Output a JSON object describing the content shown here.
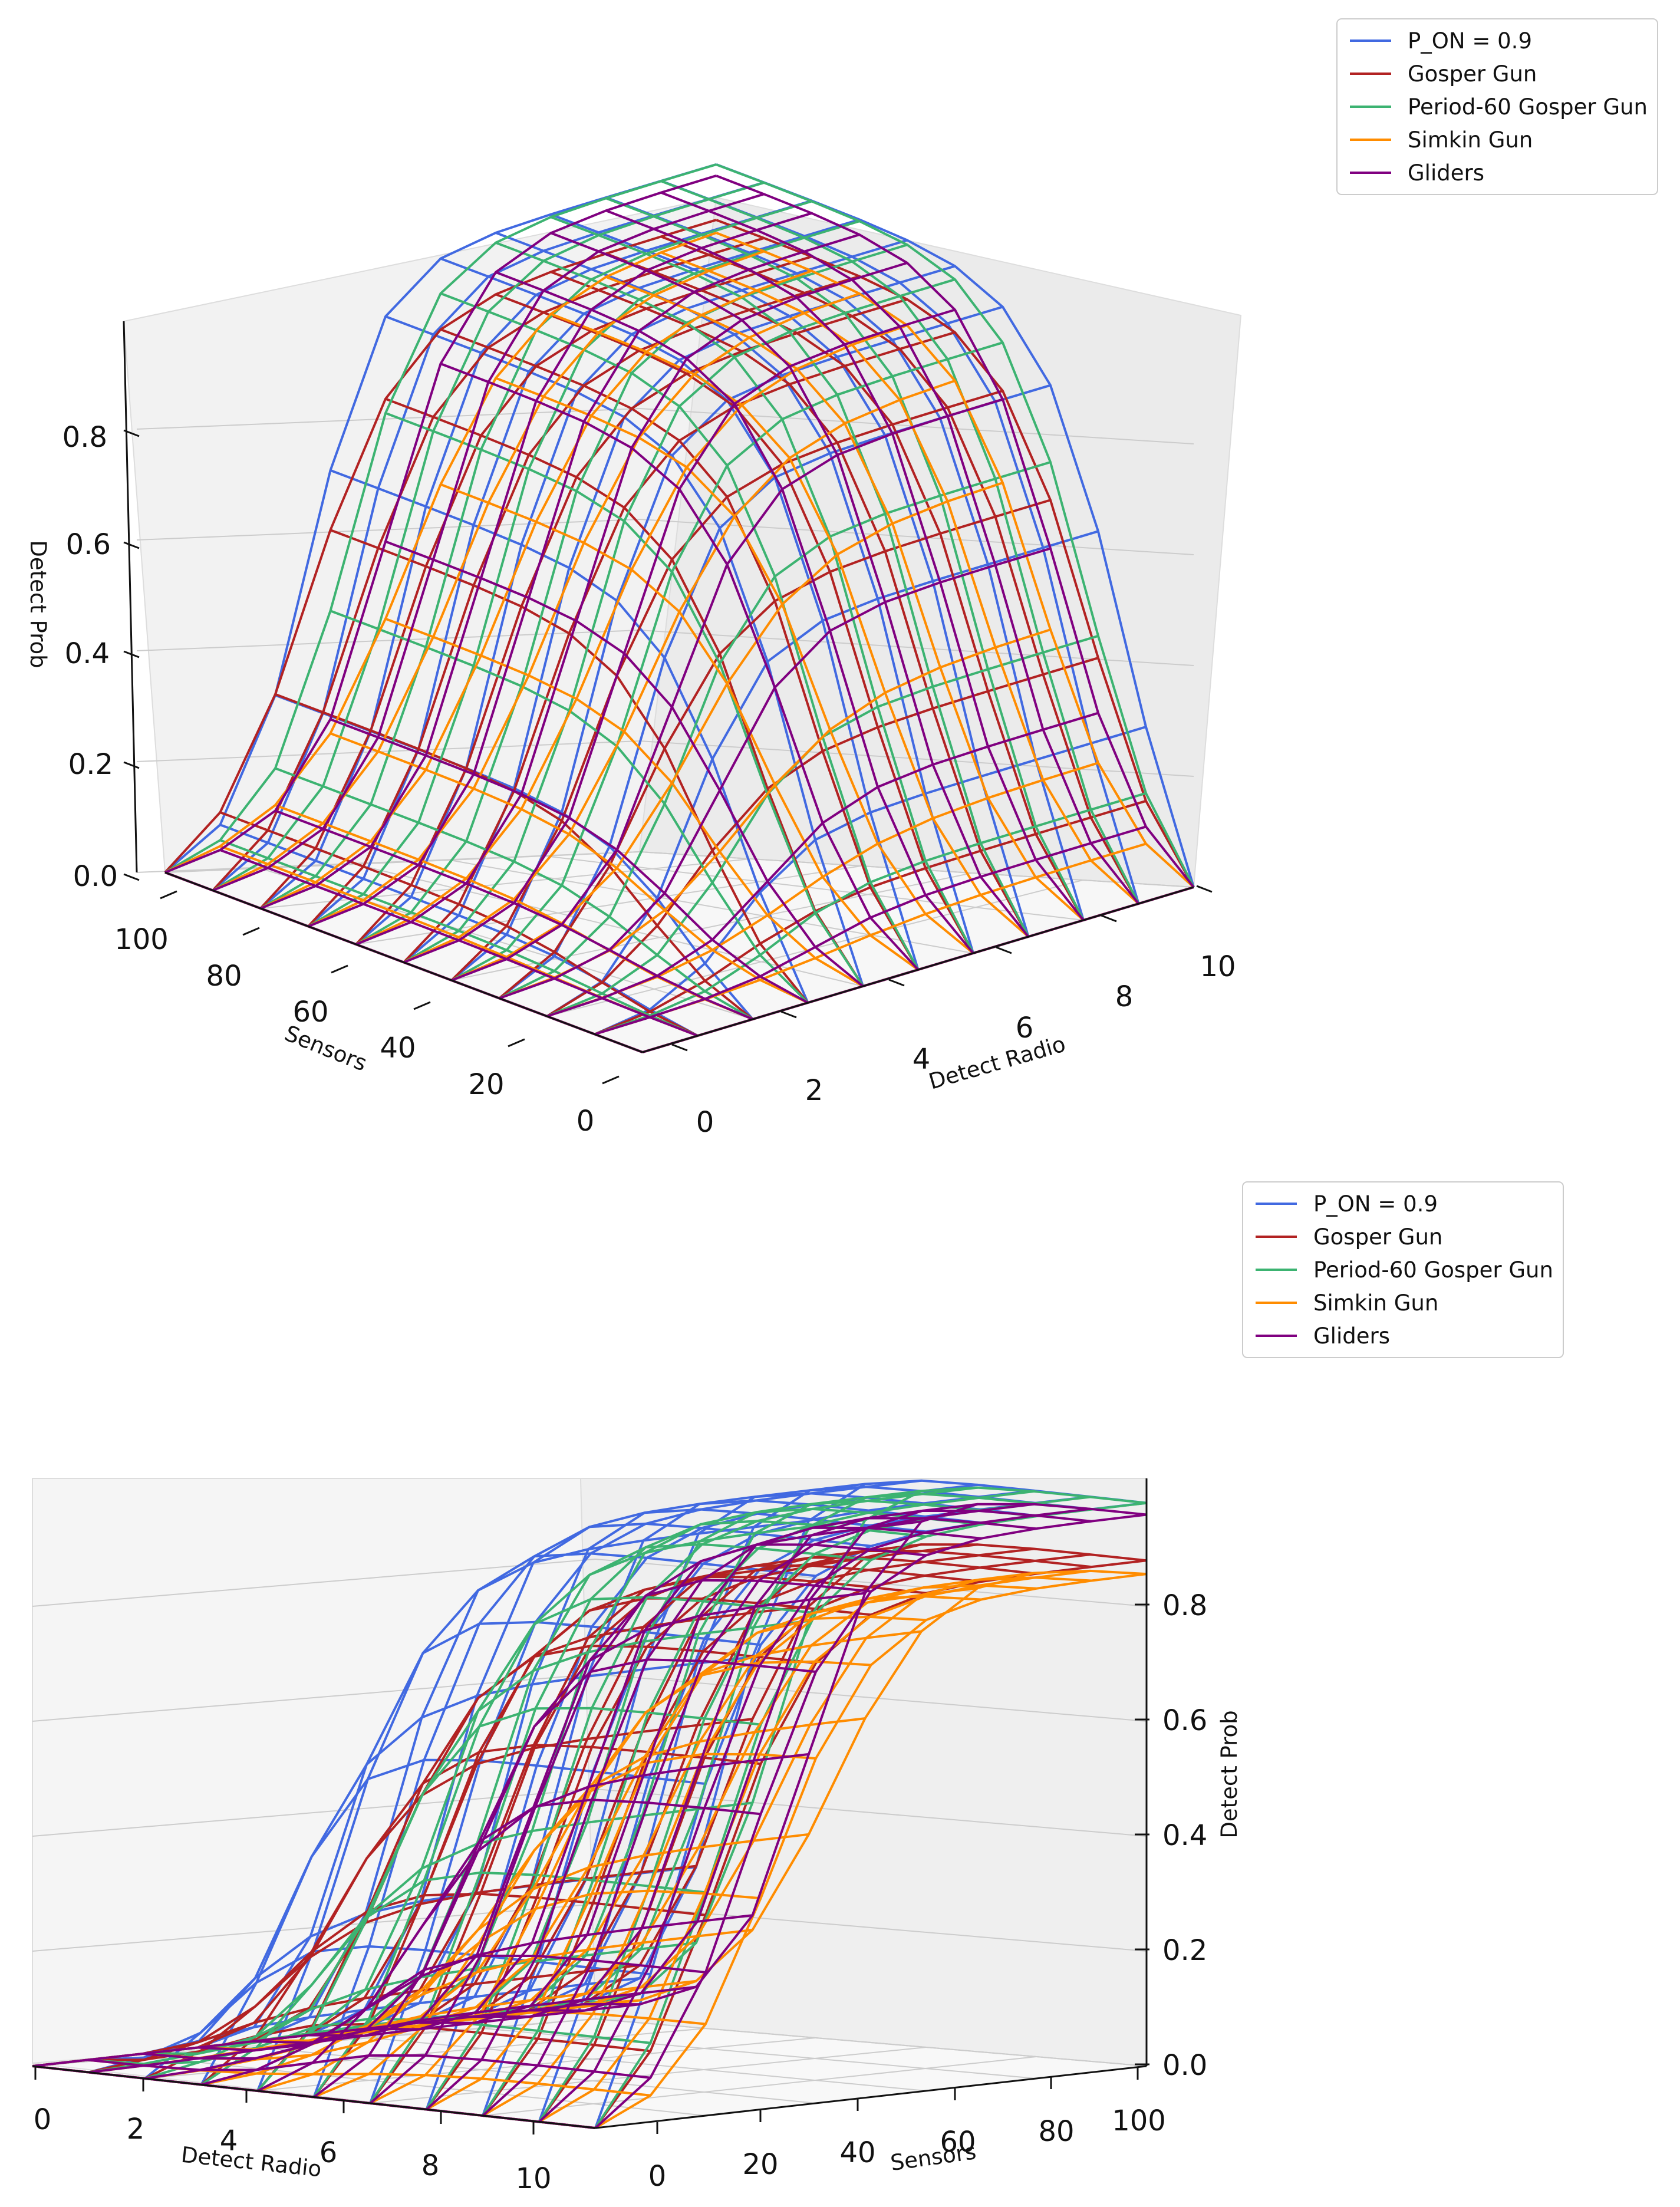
{
  "chart_data": [
    {
      "type": "3d-wireframe",
      "view": "upper",
      "xlabel": "Detect Radio",
      "ylabel": "Sensors",
      "zlabel": "Detect Prob",
      "xlim": [
        0,
        10
      ],
      "ylim": [
        0,
        100
      ],
      "zlim": [
        0,
        1
      ],
      "xticks": [
        "0",
        "2",
        "4",
        "6",
        "8",
        "10"
      ],
      "yticks": [
        "0",
        "20",
        "40",
        "60",
        "80",
        "100"
      ],
      "zticks": [
        "0.0",
        "0.2",
        "0.4",
        "0.6",
        "0.8"
      ],
      "legend": [
        "P_ON = 0.9",
        "Gosper Gun",
        "Period-60 Gosper Gun",
        "Simkin Gun",
        "Gliders"
      ],
      "series": [
        {
          "name": "P_ON = 0.9",
          "color": "#4169e1",
          "max": 0.98,
          "r50": 2.6,
          "s50": 14,
          "k": 1.6
        },
        {
          "name": "Gosper Gun",
          "color": "#b22222",
          "max": 0.88,
          "r50": 2.6,
          "s50": 22,
          "k": 1.2
        },
        {
          "name": "Period-60 Gosper Gun",
          "color": "#3cb371",
          "max": 0.98,
          "r50": 3.3,
          "s50": 22,
          "k": 1.4
        },
        {
          "name": "Simkin Gun",
          "color": "#ff8c00",
          "max": 0.86,
          "r50": 4.4,
          "s50": 32,
          "k": 1.0
        },
        {
          "name": "Gliders",
          "color": "#800080",
          "max": 0.96,
          "r50": 4.0,
          "s50": 28,
          "k": 1.4
        }
      ]
    },
    {
      "type": "3d-wireframe",
      "view": "side",
      "xlabel": "Detect Radio",
      "ylabel": "Sensors",
      "zlabel": "Detect Prob",
      "xlim": [
        0,
        10
      ],
      "ylim": [
        0,
        100
      ],
      "zlim": [
        0,
        1
      ],
      "xticks": [
        "0",
        "2",
        "4",
        "6",
        "8",
        "10"
      ],
      "yticks": [
        "0",
        "20",
        "40",
        "60",
        "80",
        "100"
      ],
      "zticks": [
        "0.0",
        "0.2",
        "0.4",
        "0.6",
        "0.8"
      ],
      "legend": [
        "P_ON = 0.9",
        "Gosper Gun",
        "Period-60 Gosper Gun",
        "Simkin Gun",
        "Gliders"
      ]
    }
  ]
}
